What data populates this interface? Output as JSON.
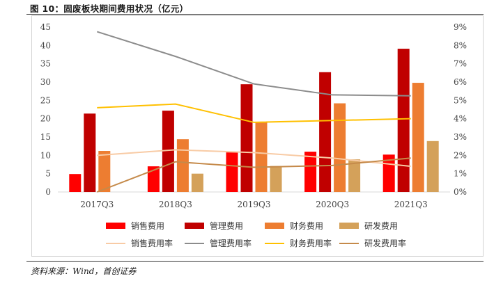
{
  "figure_title": "图 10：固废板块期间费用状况（亿元）",
  "source_note": "资料来源：Wind，首创证券",
  "chart_data": {
    "type": "bar",
    "categories": [
      "2017Q3",
      "2018Q3",
      "2019Q3",
      "2020Q3",
      "2021Q3"
    ],
    "y_left": {
      "ylim": [
        0,
        45
      ],
      "ticks": [
        0,
        5,
        10,
        15,
        20,
        25,
        30,
        35,
        40,
        45
      ]
    },
    "y_right": {
      "ylim": [
        0,
        9
      ],
      "ticks": [
        "0%",
        "1%",
        "2%",
        "3%",
        "4%",
        "5%",
        "6%",
        "7%",
        "8%",
        "9%"
      ]
    },
    "bar_series": [
      {
        "name": "销售费用",
        "color": "#ff0000",
        "values": [
          4.9,
          7.0,
          10.8,
          11.0,
          10.2
        ]
      },
      {
        "name": "管理费用",
        "color": "#c00000",
        "values": [
          21.4,
          22.2,
          29.4,
          32.7,
          39.1
        ]
      },
      {
        "name": "财务费用",
        "color": "#ed7d31",
        "values": [
          11.2,
          14.4,
          19.1,
          24.2,
          29.8
        ]
      },
      {
        "name": "研发费用",
        "color": "#d4a15a",
        "values": [
          0,
          5.0,
          7.1,
          8.9,
          13.9
        ]
      }
    ],
    "line_series": [
      {
        "name": "销售费用率",
        "color": "#f8cba5",
        "values": [
          2.0,
          2.3,
          2.15,
          1.85,
          1.4
        ]
      },
      {
        "name": "管理费用率",
        "color": "#8c8c8c",
        "values": [
          8.75,
          7.4,
          5.9,
          5.3,
          5.25
        ]
      },
      {
        "name": "财务费用率",
        "color": "#ffc000",
        "values": [
          4.6,
          4.8,
          3.8,
          3.9,
          4.0
        ]
      },
      {
        "name": "研发费用率",
        "color": "#c58a4a",
        "values": [
          0,
          1.65,
          1.35,
          1.45,
          1.85
        ]
      }
    ],
    "legend_position": "bottom"
  }
}
